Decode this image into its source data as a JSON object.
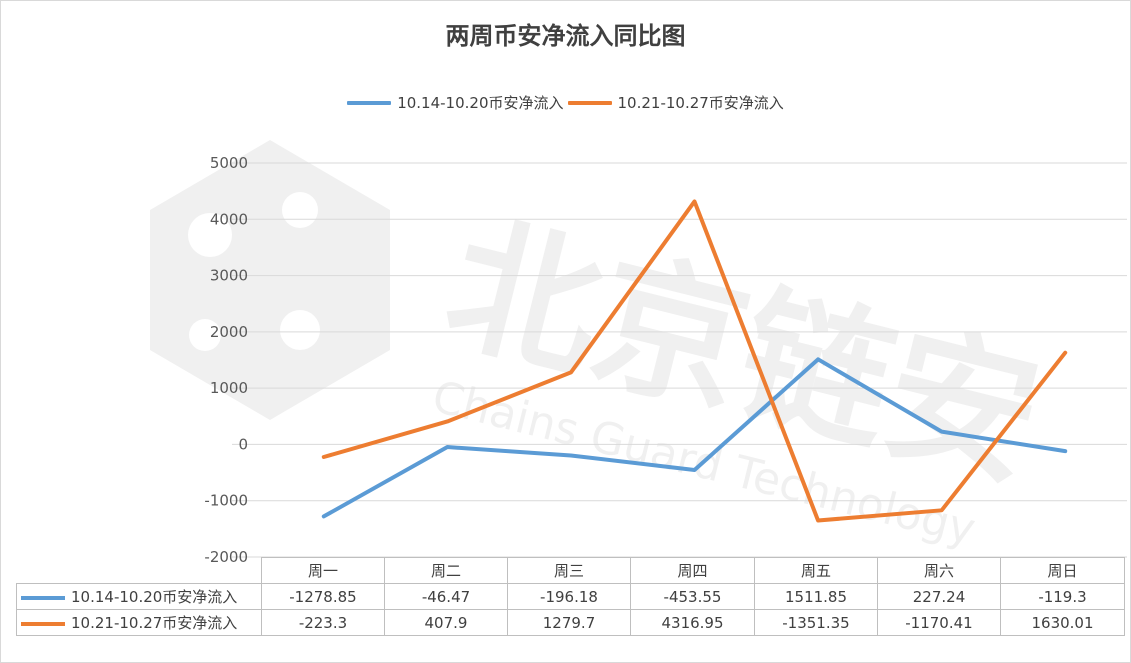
{
  "chart_data": {
    "type": "line",
    "title": "两周币安净流入同比图",
    "categories": [
      "周一",
      "周二",
      "周三",
      "周四",
      "周五",
      "周六",
      "周日"
    ],
    "series": [
      {
        "name": "10.14-10.20币安净流入",
        "color": "#5B9BD5",
        "values": [
          -1278.85,
          -46.47,
          -196.18,
          -453.55,
          1511.85,
          227.24,
          -119.3
        ],
        "labels": [
          "-1278.85",
          "-46.47",
          "-196.18",
          "-453.55",
          "1511.85",
          "227.24",
          "-119.3"
        ]
      },
      {
        "name": "10.21-10.27币安净流入",
        "color": "#ED7D31",
        "values": [
          -223.3,
          407.9,
          1279.7,
          4316.95,
          -1351.35,
          -1170.41,
          1630.01
        ],
        "labels": [
          "-223.3",
          "407.9",
          "1279.7",
          "4316.95",
          "-1351.35",
          "-1170.41",
          "1630.01"
        ]
      }
    ],
    "ylim": [
      -2000,
      5000
    ],
    "yticks": [
      "5000",
      "4000",
      "3000",
      "2000",
      "1000",
      "0",
      "-1000",
      "-2000"
    ],
    "ytick_values": [
      5000,
      4000,
      3000,
      2000,
      1000,
      0,
      -1000,
      -2000
    ],
    "grid": true,
    "legend": "top",
    "data_table": true
  },
  "watermark": {
    "text_cn": "北京链安",
    "text_en": "Chains Guard Technology",
    "icon": "hexagon-network-icon"
  }
}
